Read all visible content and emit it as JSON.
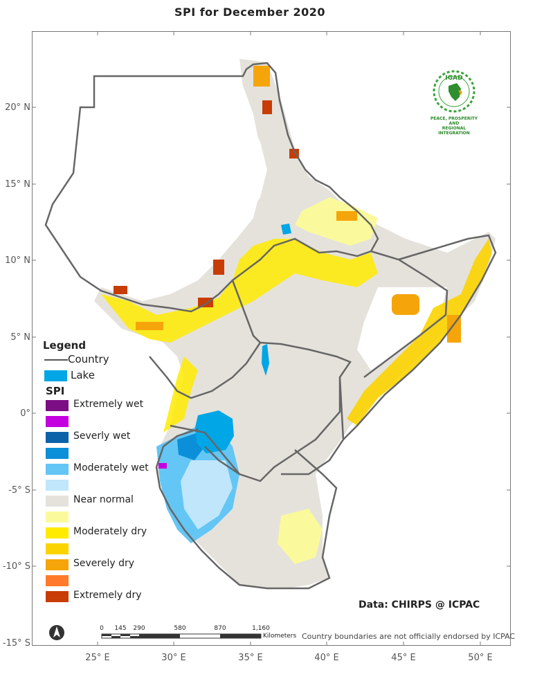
{
  "title": "SPI  for   December 2020",
  "lat_labels": [
    "20° N",
    "15° N",
    "10° N",
    "5° N",
    "0°",
    "-5° S",
    "-10° S",
    "-15° S"
  ],
  "lon_labels": [
    "25° E",
    "30° E",
    "35° E",
    "40° E",
    "45° E",
    "50° E"
  ],
  "legend": {
    "heading": "Legend",
    "country_label": "Country",
    "lake_label": "Lake",
    "lake_color": "#00a6e6",
    "spi_heading": "SPI",
    "classes": [
      {
        "label": "Extremely wet",
        "color": "#7b0e84"
      },
      {
        "label": "",
        "color": "#c400e0"
      },
      {
        "label": "Severly wet",
        "color": "#0b62a8"
      },
      {
        "label": "",
        "color": "#0b8fd8"
      },
      {
        "label": "Moderately wet",
        "color": "#63c6f5"
      },
      {
        "label": "",
        "color": "#bfe6fb"
      },
      {
        "label": "Near normal",
        "color": "#e5e2dc"
      },
      {
        "label": "",
        "color": "#fafa9c"
      },
      {
        "label": "Moderately dry",
        "color": "#ffeb00"
      },
      {
        "label": "",
        "color": "#fbd400"
      },
      {
        "label": "Severely dry",
        "color": "#f5a50a"
      },
      {
        "label": "",
        "color": "#ff7a2a"
      },
      {
        "label": "Extremely dry",
        "color": "#c83c05"
      }
    ]
  },
  "scalebar": {
    "ticks": [
      "0",
      "145",
      "290",
      "580",
      "870",
      "1,160"
    ],
    "unit": "Kilometers"
  },
  "credit": "Data: CHIRPS @ ICPAC",
  "disclaimer": "Country boundaries are not officially endorsed by ICPAC",
  "logo": {
    "acronym": "IGAD",
    "tagline_1": "PEACE, PROSPERITY AND",
    "tagline_2": "REGIONAL INTEGRATION"
  }
}
